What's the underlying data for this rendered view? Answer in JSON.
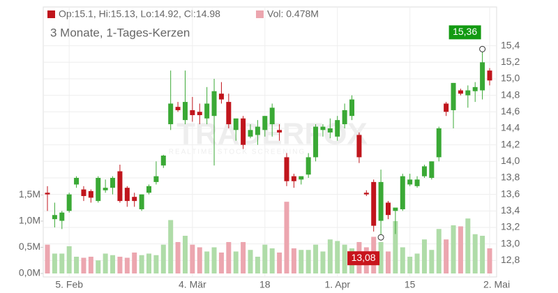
{
  "chart_data": {
    "type": "candlestick",
    "title": "3 Monate, 1-Tages-Kerzen",
    "legend": {
      "ohlc": "Op:15.1, Hi:15.13, Lo:14.92, Cl:14.98",
      "volume": "Vol: 0.478M"
    },
    "watermark": "TRADERFOX",
    "watermark_sub": "REALTIME STOCK SCREENING",
    "categories": [
      null,
      null,
      null,
      "5. Feb",
      null,
      null,
      null,
      null,
      null,
      null,
      null,
      null,
      null,
      null,
      null,
      null,
      null,
      null,
      null,
      null,
      "4. Mär",
      null,
      null,
      null,
      null,
      null,
      null,
      null,
      null,
      null,
      "18",
      null,
      null,
      null,
      null,
      null,
      null,
      null,
      null,
      null,
      "1. Apr",
      null,
      null,
      null,
      null,
      null,
      null,
      null,
      null,
      null,
      "15",
      null,
      null,
      null,
      null,
      null,
      null,
      null,
      null,
      null,
      null,
      "2. Mai"
    ],
    "open": [
      13.62,
      13.3,
      13.28,
      13.4,
      13.72,
      13.66,
      13.64,
      13.52,
      13.65,
      13.68,
      13.88,
      13.68,
      13.57,
      13.42,
      13.62,
      13.75,
      13.95,
      14.45,
      14.66,
      14.5,
      14.62,
      14.6,
      14.52,
      14.55,
      14.82,
      14.72,
      14.38,
      14.52,
      14.3,
      14.32,
      14.38,
      14.45,
      14.38,
      14.05,
      13.82,
      13.78,
      13.84,
      14.05,
      14.38,
      14.35,
      14.3,
      14.45,
      14.55,
      14.32,
      13.62,
      13.75,
      13.28,
      13.5,
      13.4,
      13.42,
      13.72,
      13.7,
      13.82,
      13.8,
      14.05,
      14.7,
      14.62,
      14.86,
      14.8,
      14.85,
      14.86,
      15.1
    ],
    "high": [
      13.7,
      13.5,
      13.4,
      13.62,
      13.82,
      13.7,
      13.66,
      13.82,
      13.78,
      13.82,
      13.96,
      13.7,
      13.62,
      13.6,
      13.72,
      14.0,
      14.08,
      15.1,
      14.72,
      15.1,
      14.78,
      14.7,
      14.9,
      15.0,
      14.96,
      14.82,
      14.5,
      14.55,
      14.45,
      14.5,
      14.55,
      14.7,
      14.45,
      14.1,
      13.85,
      13.82,
      14.1,
      14.45,
      14.45,
      14.52,
      14.55,
      14.7,
      14.8,
      14.35,
      13.65,
      13.78,
      13.9,
      13.52,
      13.42,
      13.85,
      13.85,
      13.82,
      13.96,
      14.0,
      14.42,
      14.72,
      14.95,
      14.88,
      14.92,
      14.96,
      15.36,
      15.13
    ],
    "low": [
      13.4,
      13.2,
      13.18,
      13.38,
      13.68,
      13.52,
      13.5,
      13.5,
      13.62,
      13.6,
      13.5,
      13.45,
      13.45,
      13.4,
      13.6,
      13.72,
      13.92,
      14.38,
      14.6,
      14.45,
      14.48,
      14.45,
      14.45,
      13.95,
      14.7,
      14.4,
      14.25,
      14.15,
      14.28,
      14.2,
      14.3,
      14.3,
      14.25,
      13.7,
      13.68,
      13.72,
      13.8,
      14.0,
      14.3,
      14.28,
      14.25,
      14.4,
      14.5,
      13.98,
      13.58,
      13.15,
      13.08,
      13.3,
      13.12,
      13.4,
      13.7,
      13.68,
      13.8,
      13.78,
      14.0,
      14.55,
      14.4,
      14.8,
      14.65,
      14.72,
      14.75,
      14.92
    ],
    "close": [
      13.6,
      13.35,
      13.38,
      13.6,
      13.8,
      13.58,
      13.56,
      13.8,
      13.68,
      13.8,
      13.52,
      13.52,
      13.52,
      13.6,
      13.7,
      13.82,
      14.07,
      14.7,
      14.62,
      14.72,
      14.56,
      14.56,
      14.7,
      14.85,
      14.75,
      14.45,
      14.52,
      14.2,
      14.38,
      14.42,
      14.55,
      14.65,
      14.35,
      13.76,
      13.76,
      13.82,
      14.05,
      14.42,
      14.42,
      14.4,
      14.5,
      14.62,
      14.75,
      14.05,
      13.6,
      13.22,
      13.75,
      13.35,
      13.44,
      13.82,
      13.78,
      13.78,
      13.94,
      14.0,
      14.4,
      14.6,
      14.95,
      14.82,
      14.86,
      14.9,
      15.2,
      14.98
    ],
    "volume": [
      0.55,
      0.38,
      0.38,
      0.52,
      0.32,
      0.3,
      0.32,
      0.25,
      0.38,
      0.35,
      0.32,
      0.3,
      0.4,
      0.35,
      0.38,
      0.35,
      0.55,
      1.02,
      0.6,
      0.72,
      0.55,
      0.5,
      0.42,
      0.5,
      0.4,
      0.6,
      0.42,
      0.6,
      0.45,
      0.32,
      0.55,
      0.48,
      0.4,
      1.37,
      0.48,
      0.45,
      0.45,
      0.55,
      0.42,
      0.65,
      0.62,
      0.55,
      0.48,
      0.6,
      0.5,
      0.7,
      0.6,
      0.42,
      1.0,
      0.5,
      0.32,
      0.38,
      0.65,
      0.45,
      0.85,
      0.65,
      0.92,
      0.9,
      1.05,
      0.75,
      0.72,
      0.48
    ],
    "up_color": "#3aa935",
    "down_color": "#c0151c",
    "volume_up_color": "#afdca8",
    "volume_down_color": "#eca6af",
    "ylim": [
      12.6,
      15.87
    ],
    "yticks": [
      {
        "value": 12.8,
        "label": "12,8"
      },
      {
        "value": 13.0,
        "label": "13,0"
      },
      {
        "value": 13.2,
        "label": "13,2"
      },
      {
        "value": 13.4,
        "label": "13,4"
      },
      {
        "value": 13.6,
        "label": "13,6"
      },
      {
        "value": 13.8,
        "label": "13,8"
      },
      {
        "value": 14.0,
        "label": "14,0"
      },
      {
        "value": 14.2,
        "label": "14,2"
      },
      {
        "value": 14.4,
        "label": "14,4"
      },
      {
        "value": 14.6,
        "label": "14,6"
      },
      {
        "value": 14.8,
        "label": "14,8"
      },
      {
        "value": 15.0,
        "label": "15,0"
      },
      {
        "value": 15.2,
        "label": "15,2"
      },
      {
        "value": 15.4,
        "label": "15,4"
      }
    ],
    "y2lim": [
      0,
      5.09
    ],
    "y2ticks": [
      {
        "value": 0,
        "label": "0,0M"
      },
      {
        "value": 0.5,
        "label": "0,5M"
      },
      {
        "value": 1.0,
        "label": "1,0M"
      },
      {
        "value": 1.5,
        "label": "1,5M"
      }
    ],
    "annotations": [
      {
        "text": "15,36",
        "value": 15.36,
        "kind": "high"
      },
      {
        "text": "13,08",
        "value": 13.08,
        "kind": "low"
      }
    ],
    "grid": true
  }
}
